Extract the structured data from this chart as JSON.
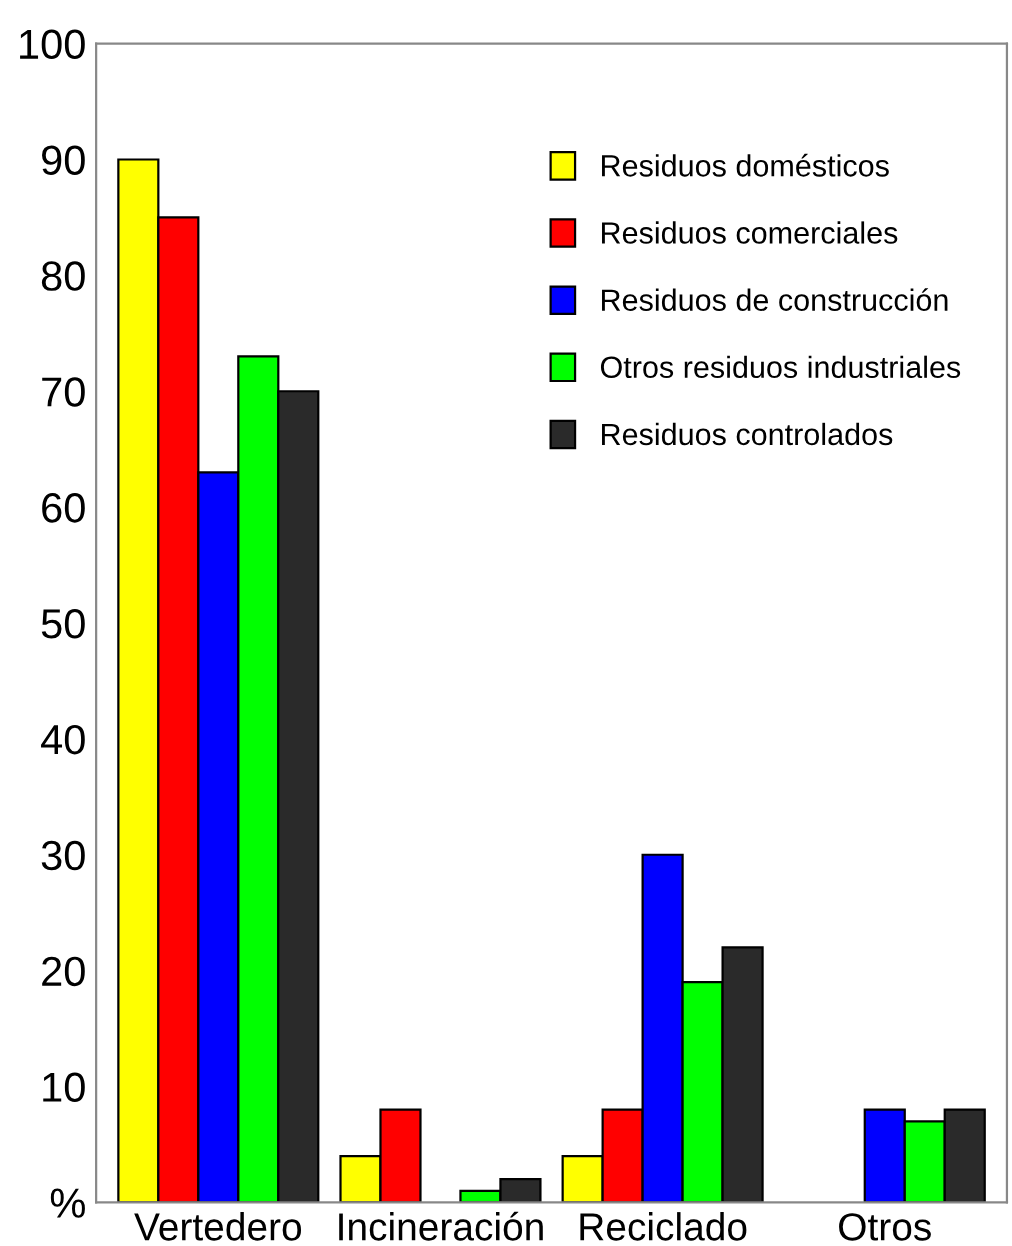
{
  "chart_data": {
    "type": "bar",
    "categories": [
      "Vertedero",
      "Incineración",
      "Reciclado",
      "Otros"
    ],
    "series": [
      {
        "name": "Residuos domésticos",
        "color": "#ffff00",
        "values": [
          90,
          4,
          4,
          null
        ]
      },
      {
        "name": "Residuos comerciales",
        "color": "#ff0000",
        "values": [
          85,
          8,
          8,
          null
        ]
      },
      {
        "name": "Residuos de construcción",
        "color": "#0000ff",
        "values": [
          63,
          null,
          30,
          8
        ]
      },
      {
        "name": "Otros residuos industriales",
        "color": "#00ff00",
        "values": [
          73,
          1,
          19,
          7
        ]
      },
      {
        "name": "Residuos controlados",
        "color": "#2a2a2a",
        "values": [
          70,
          2,
          22,
          8
        ]
      }
    ],
    "ylim": [
      0,
      100
    ],
    "yticks": [
      {
        "value": 0,
        "label": "%"
      },
      10,
      20,
      30,
      40,
      50,
      60,
      70,
      80,
      90,
      100
    ],
    "legend": "top right",
    "grid": false
  }
}
